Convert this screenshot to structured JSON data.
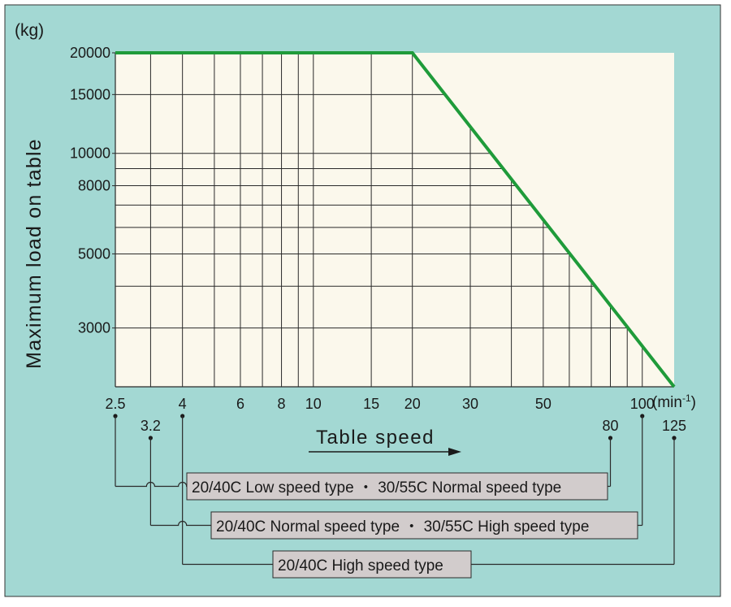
{
  "chart_data": {
    "type": "line",
    "y_unit": "(kg)",
    "ylabel": "Maximum load on table",
    "xlabel": "Table speed",
    "x_unit": "(min-1)",
    "x_unit_main": "(min",
    "x_unit_sup": "-1",
    "x_unit_close": ")",
    "x_scale": "log",
    "y_scale": "log",
    "xlim": [
      2.5,
      125
    ],
    "ylim": [
      2000,
      20000
    ],
    "x_ticks": [
      {
        "value": 2.5,
        "label": "2.5",
        "row": 0
      },
      {
        "value": 3.2,
        "label": "3.2",
        "row": 1
      },
      {
        "value": 4,
        "label": "4",
        "row": 0
      },
      {
        "value": 6,
        "label": "6",
        "row": 0
      },
      {
        "value": 8,
        "label": "8",
        "row": 0
      },
      {
        "value": 10,
        "label": "10",
        "row": 0
      },
      {
        "value": 15,
        "label": "15",
        "row": 0
      },
      {
        "value": 20,
        "label": "20",
        "row": 0
      },
      {
        "value": 30,
        "label": "30",
        "row": 0
      },
      {
        "value": 50,
        "label": "50",
        "row": 0
      },
      {
        "value": 80,
        "label": "80",
        "row": 1
      },
      {
        "value": 100,
        "label": "100",
        "row": 0
      },
      {
        "value": 125,
        "label": "125",
        "row": 1
      }
    ],
    "y_ticks": [
      {
        "value": 3000,
        "label": "3000"
      },
      {
        "value": 5000,
        "label": "5000"
      },
      {
        "value": 8000,
        "label": "8000"
      },
      {
        "value": 10000,
        "label": "10000"
      },
      {
        "value": 15000,
        "label": "15000"
      },
      {
        "value": 20000,
        "label": "20000"
      }
    ],
    "grid_x": [
      3.2,
      4,
      5,
      6,
      7,
      8,
      9,
      10,
      15,
      20,
      30,
      40,
      50,
      60,
      70,
      80,
      90,
      100
    ],
    "grid_y": [
      3000,
      4000,
      5000,
      6000,
      7000,
      8000,
      9000,
      10000,
      15000
    ],
    "series": [
      {
        "x": [
          2.5,
          20,
          125
        ],
        "y": [
          20000,
          20000,
          2000
        ],
        "color": "#1f9b3a"
      }
    ],
    "speed_types": [
      {
        "label": "20/40C Low speed type ・ 30/55C Normal speed type",
        "x_min": 2.5,
        "x_max": 80
      },
      {
        "label": "20/40C Normal speed type ・ 30/55C High speed type",
        "x_min": 3.2,
        "x_max": 100
      },
      {
        "label": "20/40C High speed type",
        "x_min": 4,
        "x_max": 125
      }
    ],
    "colors": {
      "background": "#a3d8d3",
      "plot_area": "#fbf8ec",
      "line": "#1f9b3a",
      "label_box": "#d2cccc"
    }
  }
}
